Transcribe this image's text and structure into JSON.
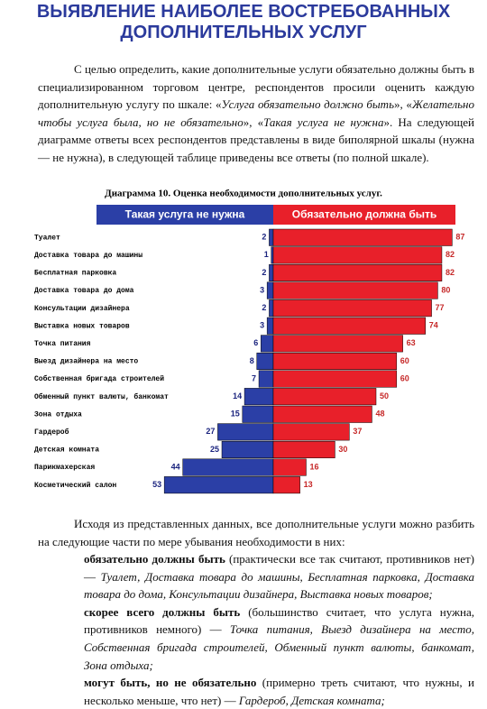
{
  "title_lines": [
    "ВЫЯВЛЕНИЕ НАИБОЛЕЕ ВОСТРЕБОВАННЫХ",
    "ДОПОЛНИТЕЛЬНЫХ УСЛУГ"
  ],
  "intro": [
    "С целью определить, какие дополнительные услуги обязательно должны быть в специализированном торговом центре, респондентов просили оценить каждую дополнительную услугу по шкале: «",
    "Услуга обязательно должно быть",
    "», «",
    "Желательно чтобы услуга была, но не обязательно",
    "», «",
    "Такая услуга не нужна",
    "». На следующей диаграмме ответы всех респондентов представлены в виде биполярной шкалы (нужна — не нужна), в следующей таблице приведены все ответы (по полной шкале)."
  ],
  "chart_data": {
    "type": "bar",
    "title": "Диаграмма 10. Оценка необходимости дополнительных услуг.",
    "categories": [
      "Туалет",
      "Доставка товара до машины",
      "Бесплатная парковка",
      "Доставка товара до дома",
      "Консультации дизайнера",
      "Выставка новых товаров",
      "Точка питания",
      "Выезд дизайнера на место",
      "Собственная бригада строителей",
      "Обменный пункт валюты, банкомат",
      "Зона отдыха",
      "Гардероб",
      "Детская комната",
      "Парикмахерская",
      "Косметический салон"
    ],
    "series": [
      {
        "name": "Такая услуга не нужна",
        "color": "#2b3fa6",
        "values": [
          2,
          1,
          2,
          3,
          2,
          3,
          6,
          8,
          7,
          14,
          15,
          27,
          25,
          44,
          53
        ]
      },
      {
        "name": "Обязательно должна быть",
        "color": "#e8202a",
        "values": [
          87,
          82,
          82,
          80,
          77,
          74,
          63,
          60,
          60,
          50,
          48,
          37,
          30,
          16,
          13
        ]
      }
    ]
  },
  "conclusion": {
    "lead": "Исходя из представленных данных, все дополнительные услуги можно разбить на следующие части по мере убывания необходимости в них:",
    "items": [
      {
        "term": "обязательно должны быть",
        "note": " (практически все так считают, противников нет) — ",
        "list": "Туалет, Доставка товара до машины, Бесплатная парковка, Доставка товара до дома, Консультации дизайнера, Выставка новых товаров;"
      },
      {
        "term": "скорее всего должны быть",
        "note": " (большинство считает, что услуга нужна, противников немного) — ",
        "list": "Точка питания, Выезд дизайнера на место, Собственная бригада строителей, Обменный пункт валюты, банкомат, Зона отдыха;"
      },
      {
        "term": "могут быть, но не обязательно",
        "note": " (примерно треть считают, что нужны, и несколько меньше, что нет) — ",
        "list": "Гардероб, Детская комната;"
      }
    ]
  }
}
